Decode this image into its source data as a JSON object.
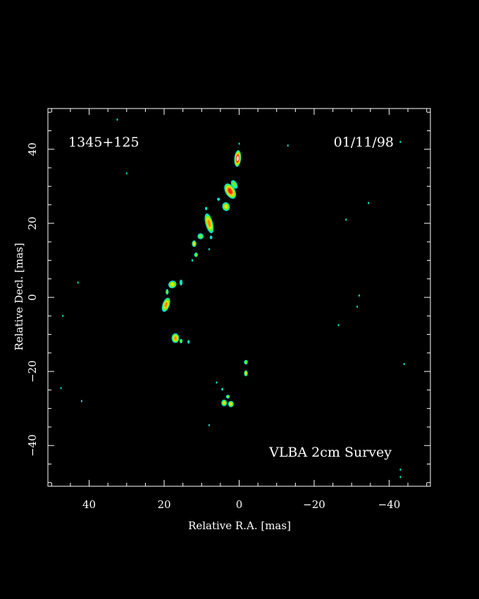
{
  "colors": {
    "background": "#000000",
    "axis": "#ffffff",
    "level_low": "#00e6c8",
    "level_mid_low": "#7cf000",
    "level_mid": "#f0e000",
    "level_mid_high": "#ff8c00",
    "level_high": "#ff1e1e",
    "level_peak": "#ffffff"
  },
  "chart_data": {
    "type": "heatmap",
    "title": "",
    "source_name": "1345+125",
    "date": "01/11/98",
    "annotation": "VLBA 2cm Survey",
    "xlabel": "Relative R.A. [mas]",
    "ylabel": "Relative Decl. [mas]",
    "xlim": [
      51,
      -51
    ],
    "ylim": [
      -51,
      51
    ],
    "x_axis_reversed": true,
    "x_ticks": [
      {
        "value": 40,
        "label": "40"
      },
      {
        "value": 20,
        "label": "20"
      },
      {
        "value": 0,
        "label": "0"
      },
      {
        "value": -20,
        "label": "−20"
      },
      {
        "value": -40,
        "label": "−40"
      }
    ],
    "y_ticks": [
      {
        "value": 40,
        "label": "40"
      },
      {
        "value": 20,
        "label": "20"
      },
      {
        "value": 0,
        "label": "0"
      },
      {
        "value": -20,
        "label": "−20"
      },
      {
        "value": -40,
        "label": "−40"
      }
    ],
    "minor_tick_step": 5,
    "grid": false,
    "legend": "none",
    "components": [
      {
        "x": 0.4,
        "y": 37.5,
        "w": 1.8,
        "h": 4.5,
        "angle": 5,
        "level": 6
      },
      {
        "x": 2.4,
        "y": 28.7,
        "w": 2.6,
        "h": 4.5,
        "angle": -30,
        "level": 5
      },
      {
        "x": 1.3,
        "y": 30.5,
        "w": 1.5,
        "h": 2.5,
        "angle": -30,
        "level": 2
      },
      {
        "x": 3.5,
        "y": 24.5,
        "w": 2.0,
        "h": 2.4,
        "angle": -20,
        "level": 3
      },
      {
        "x": 5.5,
        "y": 26.5,
        "w": 0.8,
        "h": 0.8,
        "angle": 0,
        "level": 1
      },
      {
        "x": 8.0,
        "y": 20.0,
        "w": 2.0,
        "h": 5.5,
        "angle": -15,
        "level": 4
      },
      {
        "x": 8.8,
        "y": 24.0,
        "w": 0.6,
        "h": 0.9,
        "angle": 0,
        "level": 1
      },
      {
        "x": 10.3,
        "y": 16.5,
        "w": 1.6,
        "h": 1.6,
        "angle": 0,
        "level": 2
      },
      {
        "x": 12.0,
        "y": 14.5,
        "w": 1.2,
        "h": 1.8,
        "angle": 0,
        "level": 3
      },
      {
        "x": 7.5,
        "y": 16.2,
        "w": 0.7,
        "h": 1.0,
        "angle": 0,
        "level": 1
      },
      {
        "x": 11.5,
        "y": 11.5,
        "w": 1.0,
        "h": 1.2,
        "angle": 0,
        "level": 2
      },
      {
        "x": 17.8,
        "y": 3.5,
        "w": 2.2,
        "h": 2.0,
        "angle": -25,
        "level": 3
      },
      {
        "x": 19.2,
        "y": 1.5,
        "w": 0.8,
        "h": 1.5,
        "angle": 0,
        "level": 2
      },
      {
        "x": 15.5,
        "y": 4.0,
        "w": 0.8,
        "h": 1.6,
        "angle": 0,
        "level": 1
      },
      {
        "x": 19.5,
        "y": -2.0,
        "w": 1.9,
        "h": 4.0,
        "angle": 20,
        "level": 4
      },
      {
        "x": 17.0,
        "y": -11.0,
        "w": 2.0,
        "h": 2.6,
        "angle": 0,
        "level": 4
      },
      {
        "x": 15.5,
        "y": -11.8,
        "w": 0.8,
        "h": 1.2,
        "angle": 0,
        "level": 2
      },
      {
        "x": 13.5,
        "y": -12.0,
        "w": 0.6,
        "h": 1.0,
        "angle": 0,
        "level": 1
      },
      {
        "x": -1.8,
        "y": -17.5,
        "w": 1.0,
        "h": 1.2,
        "angle": 0,
        "level": 2
      },
      {
        "x": -1.8,
        "y": -20.5,
        "w": 1.0,
        "h": 1.6,
        "angle": 0,
        "level": 3
      },
      {
        "x": 4.0,
        "y": -28.5,
        "w": 1.5,
        "h": 1.8,
        "angle": 0,
        "level": 3
      },
      {
        "x": 2.2,
        "y": -28.8,
        "w": 1.5,
        "h": 1.7,
        "angle": 0,
        "level": 3
      },
      {
        "x": 3.0,
        "y": -26.8,
        "w": 1.0,
        "h": 1.0,
        "angle": 0,
        "level": 2
      },
      {
        "x": 4.5,
        "y": -24.8,
        "w": 0.5,
        "h": 0.7,
        "angle": 0,
        "level": 1
      },
      {
        "x": 6.0,
        "y": -23.0,
        "w": 0.4,
        "h": 0.6,
        "angle": 0,
        "level": 1
      },
      {
        "x": 8.0,
        "y": 13.0,
        "w": 0.4,
        "h": 0.6,
        "angle": 0,
        "level": 1
      },
      {
        "x": 12.5,
        "y": 10.0,
        "w": 0.4,
        "h": 0.7,
        "angle": 0,
        "level": 1
      }
    ],
    "speckles": [
      {
        "x": 32.5,
        "y": 48.0
      },
      {
        "x": 0.0,
        "y": 41.5
      },
      {
        "x": -13.0,
        "y": 41.0
      },
      {
        "x": -43.0,
        "y": 42.0
      },
      {
        "x": 30.0,
        "y": 33.5
      },
      {
        "x": -34.5,
        "y": 25.5
      },
      {
        "x": -28.5,
        "y": 21.0
      },
      {
        "x": 43.0,
        "y": 4.0
      },
      {
        "x": -32.0,
        "y": 0.5
      },
      {
        "x": -31.5,
        "y": -2.5
      },
      {
        "x": -26.5,
        "y": -7.5
      },
      {
        "x": 47.0,
        "y": -5.0
      },
      {
        "x": -44.0,
        "y": -18.0
      },
      {
        "x": 47.5,
        "y": -24.5
      },
      {
        "x": -43.0,
        "y": -46.5
      },
      {
        "x": -43.0,
        "y": -48.5
      },
      {
        "x": 8.0,
        "y": -34.5
      },
      {
        "x": 42.0,
        "y": -28.0
      }
    ]
  }
}
